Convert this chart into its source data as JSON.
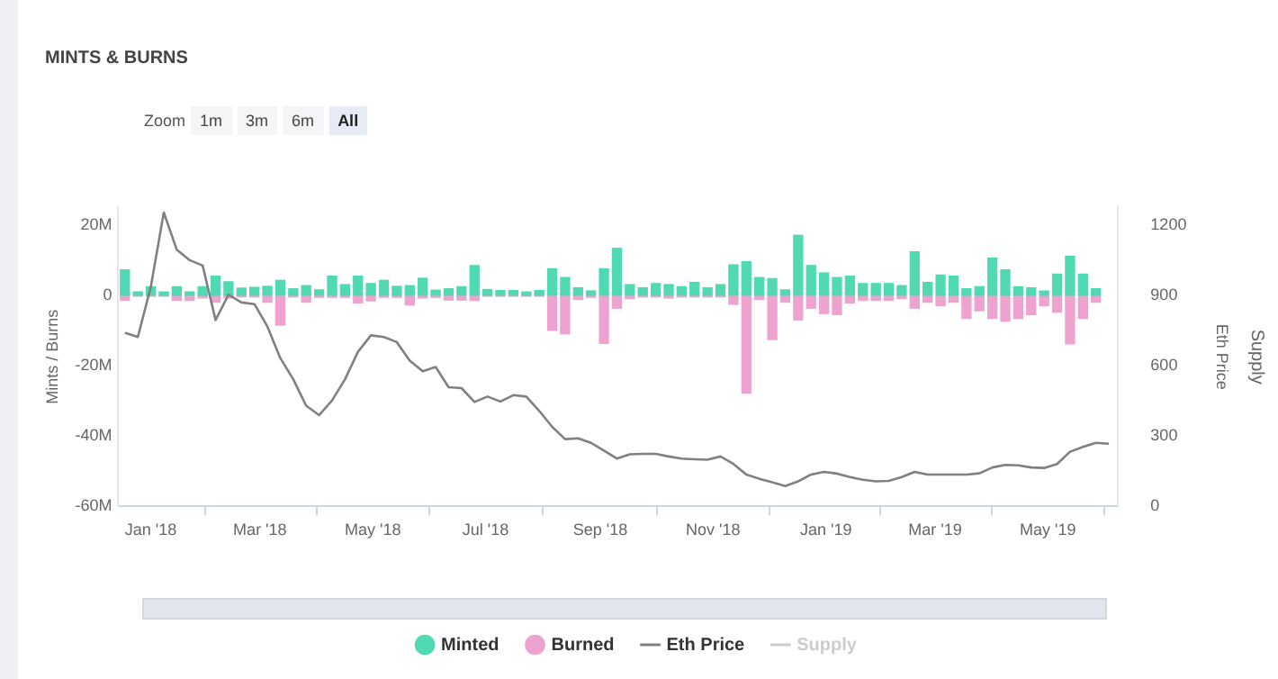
{
  "chart_data": {
    "type": "bar",
    "title": "MINTS & BURNS",
    "ylabel": "Mints / Burns",
    "y2label": "Eth Price",
    "y3label": "Supply",
    "annotations": [
      "Zoom",
      "1m",
      "3m",
      "6m",
      "All"
    ],
    "stacked": true,
    "legend": "bottom",
    "x": [
      "2017-12-18",
      "2017-12-25",
      "2018-01-01",
      "2018-01-08",
      "2018-01-15",
      "2018-01-22",
      "2018-01-29",
      "2018-02-05",
      "2018-02-12",
      "2018-02-19",
      "2018-02-26",
      "2018-03-05",
      "2018-03-12",
      "2018-03-19",
      "2018-03-26",
      "2018-04-02",
      "2018-04-09",
      "2018-04-16",
      "2018-04-23",
      "2018-04-30",
      "2018-05-07",
      "2018-05-14",
      "2018-05-21",
      "2018-05-28",
      "2018-06-04",
      "2018-06-11",
      "2018-06-18",
      "2018-06-25",
      "2018-07-02",
      "2018-07-09",
      "2018-07-16",
      "2018-07-23",
      "2018-07-30",
      "2018-08-06",
      "2018-08-13",
      "2018-08-20",
      "2018-08-27",
      "2018-09-03",
      "2018-09-10",
      "2018-09-17",
      "2018-09-24",
      "2018-10-01",
      "2018-10-08",
      "2018-10-15",
      "2018-10-22",
      "2018-10-29",
      "2018-11-05",
      "2018-11-12",
      "2018-11-19",
      "2018-11-26",
      "2018-12-03",
      "2018-12-10",
      "2018-12-17",
      "2018-12-24",
      "2018-12-31",
      "2019-01-07",
      "2019-01-14",
      "2019-01-21",
      "2019-01-28",
      "2019-02-04",
      "2019-02-11",
      "2019-02-18",
      "2019-02-25",
      "2019-03-04",
      "2019-03-11",
      "2019-03-18",
      "2019-03-25",
      "2019-04-01",
      "2019-04-08",
      "2019-04-15",
      "2019-04-22",
      "2019-04-29",
      "2019-05-06",
      "2019-05-13",
      "2019-05-20",
      "2019-05-27"
    ],
    "series": [
      {
        "name": "Minted",
        "color": "#50d9b3",
        "values": [
          7.2,
          0.9,
          2.4,
          0.9,
          2.4,
          0.9,
          2.4,
          5.4,
          3.8,
          2,
          2.2,
          2.5,
          4.2,
          1.8,
          2.7,
          1.5,
          5.4,
          3,
          5.4,
          3.3,
          4.2,
          2.5,
          2.7,
          4.8,
          1.4,
          1.8,
          2.4,
          8.4,
          1.6,
          1.3,
          1.3,
          0.9,
          1.3,
          7.5,
          5,
          2.1,
          1.2,
          7.5,
          13.3,
          3,
          2.1,
          3.3,
          3,
          2.4,
          3.6,
          2.1,
          3,
          8.6,
          9.5,
          5,
          4.7,
          1.5,
          17,
          8.4,
          6.3,
          5,
          5.4,
          3.3,
          3.3,
          3.3,
          2.7,
          12.3,
          3.6,
          5.7,
          5.4,
          1.8,
          2.4,
          10.5,
          7.2,
          2.4,
          2.1,
          1.2,
          6,
          11,
          6,
          1.8
        ]
      },
      {
        "name": "Burned",
        "color": "#eea2cf",
        "values": [
          -1.5,
          -0.3,
          -0.3,
          -0.3,
          -1.5,
          -1.5,
          -0.8,
          -2,
          -0.8,
          -0.5,
          -0.5,
          -2,
          -8.5,
          -0.5,
          -2,
          -0.6,
          -0.6,
          -0.6,
          -2.2,
          -1.6,
          -0.6,
          -0.6,
          -2.8,
          -0.8,
          -0.6,
          -1.4,
          -1.4,
          -1.5,
          -0.3,
          -0.3,
          -0.3,
          -0.3,
          -0.3,
          -10,
          -11,
          -1.2,
          -0.6,
          -13.7,
          -3.7,
          -1,
          -0.5,
          -0.5,
          -0.8,
          -0.5,
          -0.5,
          -0.5,
          -0.5,
          -2.6,
          -27.8,
          -1.2,
          -12.6,
          -2,
          -7,
          -3.7,
          -5.2,
          -5.5,
          -2.2,
          -1.5,
          -1.5,
          -1.5,
          -1,
          -3.7,
          -2,
          -3,
          -2,
          -6.6,
          -4.4,
          -6.6,
          -7.4,
          -6.6,
          -5.5,
          -3,
          -4.8,
          -13.8,
          -6.6,
          -2
        ]
      },
      {
        "name": "Eth Price",
        "type": "line",
        "axis": "y2",
        "color": "#808080",
        "x": [
          "2017-12-18",
          "2017-12-25",
          "2018-01-01",
          "2018-01-08",
          "2018-01-15",
          "2018-01-22",
          "2018-01-29",
          "2018-02-05",
          "2018-02-12",
          "2018-02-19",
          "2018-02-26",
          "2018-03-05",
          "2018-03-12",
          "2018-03-19",
          "2018-03-26",
          "2018-04-02",
          "2018-04-09",
          "2018-04-16",
          "2018-04-23",
          "2018-04-30",
          "2018-05-07",
          "2018-05-14",
          "2018-05-21",
          "2018-05-28",
          "2018-06-04",
          "2018-06-11",
          "2018-06-18",
          "2018-06-25",
          "2018-07-02",
          "2018-07-09",
          "2018-07-16",
          "2018-07-23",
          "2018-07-30",
          "2018-08-06",
          "2018-08-13",
          "2018-08-20",
          "2018-08-27",
          "2018-09-03",
          "2018-09-10",
          "2018-09-17",
          "2018-09-24",
          "2018-10-01",
          "2018-10-08",
          "2018-10-15",
          "2018-10-22",
          "2018-10-29",
          "2018-11-05",
          "2018-11-12",
          "2018-11-19",
          "2018-11-26",
          "2018-12-03",
          "2018-12-10",
          "2018-12-17",
          "2018-12-24",
          "2018-12-31",
          "2019-01-07",
          "2019-01-14",
          "2019-01-21",
          "2019-01-28",
          "2019-02-04",
          "2019-02-11",
          "2019-02-18",
          "2019-02-25",
          "2019-03-04",
          "2019-03-11",
          "2019-03-18",
          "2019-03-25",
          "2019-04-01",
          "2019-04-08",
          "2019-04-15",
          "2019-04-22",
          "2019-04-29",
          "2019-05-06",
          "2019-05-13",
          "2019-05-20",
          "2019-05-27",
          "2019-06-03"
        ],
        "values": [
          740,
          722,
          936,
          1252,
          1094,
          1049,
          1026,
          794,
          902,
          869,
          862,
          767,
          632,
          542,
          429,
          389,
          452,
          542,
          659,
          729,
          722,
          700,
          621,
          576,
          594,
          508,
          504,
          445,
          468,
          447,
          474,
          468,
          407,
          339,
          287,
          290,
          271,
          238,
          204,
          222,
          224,
          224,
          213,
          204,
          201,
          199,
          213,
          181,
          136,
          118,
          103,
          87,
          107,
          136,
          147,
          140,
          125,
          114,
          107,
          109,
          125,
          147,
          136,
          136,
          136,
          136,
          141,
          166,
          177,
          175,
          166,
          164,
          181,
          233,
          254,
          271,
          267
        ]
      },
      {
        "name": "Supply",
        "type": "line",
        "color": "#cccccc",
        "values": [
          null,
          null,
          null,
          null,
          null,
          null,
          null,
          null,
          null,
          null,
          null,
          null,
          null,
          null,
          null,
          null,
          null,
          null,
          null,
          null,
          null,
          null,
          null,
          null,
          null,
          null,
          null,
          null,
          null,
          null,
          null,
          null,
          null,
          null,
          null,
          null,
          null,
          null,
          null,
          null,
          null,
          null,
          null,
          null,
          null,
          null,
          null,
          null,
          null,
          null,
          null,
          null,
          null,
          null,
          null,
          null,
          null,
          null,
          null,
          null,
          null,
          null,
          null,
          null,
          null,
          null,
          null,
          null,
          null,
          null,
          null,
          null,
          null,
          null,
          null,
          null
        ]
      }
    ],
    "xlim": [
      "2017-12-14",
      "2019-06-08"
    ],
    "xticks": [
      {
        "value": "2018-01-01",
        "label": "Jan '18"
      },
      {
        "value": "2018-03-01",
        "label": "Mar '18"
      },
      {
        "value": "2018-05-01",
        "label": "May '18"
      },
      {
        "value": "2018-07-01",
        "label": "Jul '18"
      },
      {
        "value": "2018-09-01",
        "label": "Sep '18"
      },
      {
        "value": "2018-11-01",
        "label": "Nov '18"
      },
      {
        "value": "2019-01-01",
        "label": "Jan '19"
      },
      {
        "value": "2019-03-01",
        "label": "Mar '19"
      },
      {
        "value": "2019-05-01",
        "label": "May '19"
      }
    ],
    "ylim": [
      -60,
      25
    ],
    "yticks": [
      {
        "value": -60,
        "label": "-60M"
      },
      {
        "value": -40,
        "label": "-40M"
      },
      {
        "value": -20,
        "label": "-20M"
      },
      0,
      {
        "value": 20,
        "label": "20M"
      }
    ],
    "y2lim": [
      0,
      1275
    ],
    "y2ticks": [
      0,
      300,
      600,
      900,
      1200
    ]
  }
}
